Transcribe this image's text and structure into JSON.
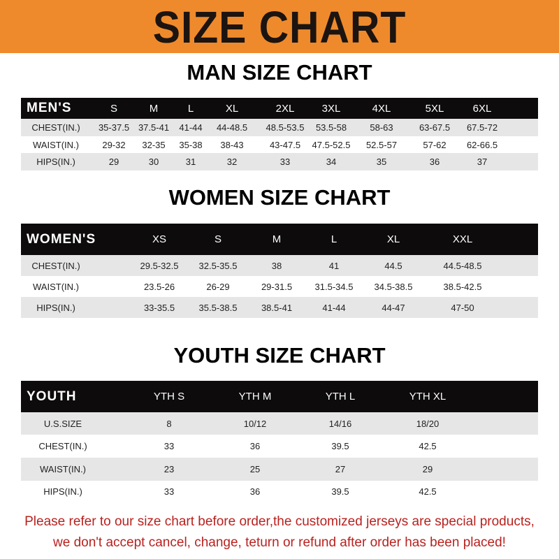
{
  "banner_title": "SIZE CHART",
  "men": {
    "title": "MAN SIZE CHART",
    "header": [
      "MEN'S",
      "S",
      "M",
      "L",
      "XL",
      "2XL",
      "3XL",
      "4XL",
      "5XL",
      "6XL"
    ],
    "rows": [
      [
        "CHEST(IN.)",
        "35-37.5",
        "37.5-41",
        "41-44",
        "44-48.5",
        "48.5-53.5",
        "53.5-58",
        "58-63",
        "63-67.5",
        "67.5-72"
      ],
      [
        "WAIST(IN.)",
        "29-32",
        "32-35",
        "35-38",
        "38-43",
        "43-47.5",
        "47.5-52.5",
        "52.5-57",
        "57-62",
        "62-66.5"
      ],
      [
        "HIPS(IN.)",
        "29",
        "30",
        "31",
        "32",
        "33",
        "34",
        "35",
        "36",
        "37"
      ]
    ]
  },
  "women": {
    "title": "WOMEN SIZE CHART",
    "header": [
      "WOMEN'S",
      "XS",
      "S",
      "M",
      "L",
      "XL",
      "XXL"
    ],
    "rows": [
      [
        "CHEST(IN.)",
        "29.5-32.5",
        "32.5-35.5",
        "38",
        "41",
        "44.5",
        "44.5-48.5"
      ],
      [
        "WAIST(IN.)",
        "23.5-26",
        "26-29",
        "29-31.5",
        "31.5-34.5",
        "34.5-38.5",
        "38.5-42.5"
      ],
      [
        "HIPS(IN.)",
        "33-35.5",
        "35.5-38.5",
        "38.5-41",
        "41-44",
        "44-47",
        "47-50"
      ]
    ]
  },
  "youth": {
    "title": "YOUTH SIZE CHART",
    "header": [
      "YOUTH",
      "YTH S",
      "YTH M",
      "YTH L",
      "YTH XL"
    ],
    "rows": [
      [
        "U.S.SIZE",
        "8",
        "10/12",
        "14/16",
        "18/20"
      ],
      [
        "CHEST(IN.)",
        "33",
        "36",
        "39.5",
        "42.5"
      ],
      [
        "WAIST(IN.)",
        "23",
        "25",
        "27",
        "29"
      ],
      [
        "HIPS(IN.)",
        "33",
        "36",
        "39.5",
        "42.5"
      ]
    ]
  },
  "notice": {
    "line1": "Please refer to our size chart before order,the customized jerseys are special products,",
    "line2": "we don't accept cancel, change, teturn or refund after order has been placed!"
  },
  "colors": {
    "banner": "#ef8a2c",
    "header_row": "#0d0b0b",
    "notice": "#b8221f"
  }
}
